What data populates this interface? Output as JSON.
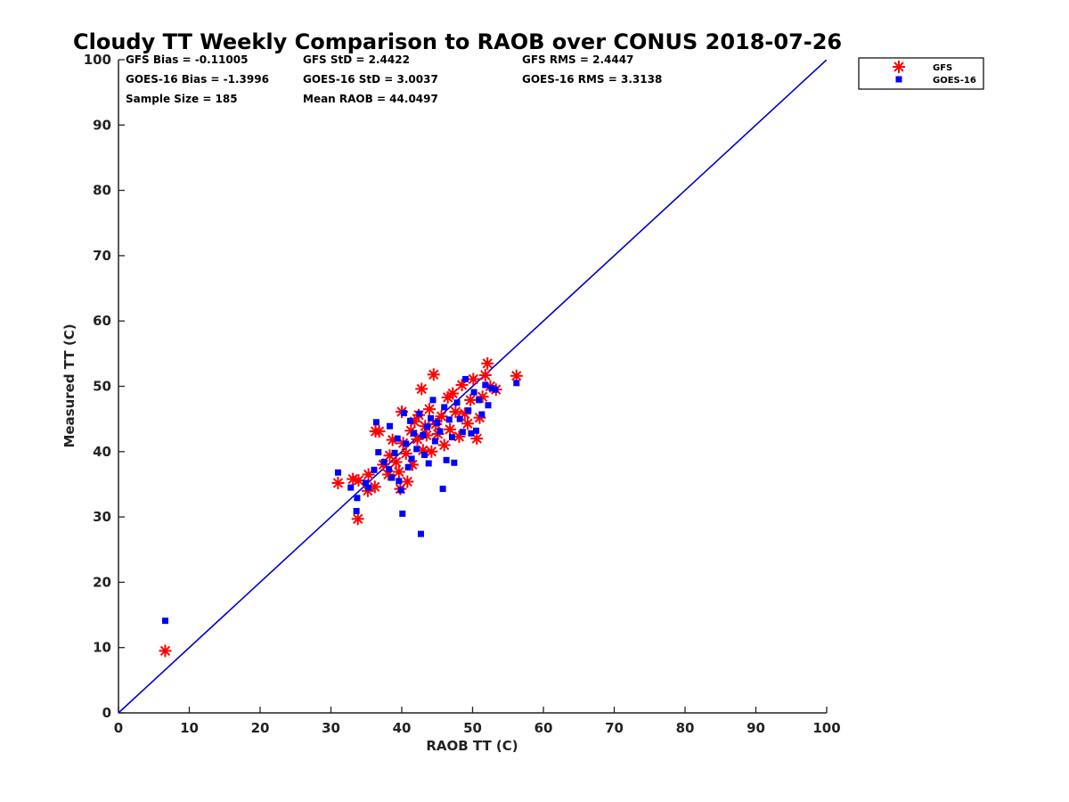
{
  "chart_data": {
    "type": "scatter",
    "title": "Cloudy TT Weekly Comparison to RAOB over CONUS 2018-07-26",
    "xlabel": "RAOB TT (C)",
    "ylabel": "Measured TT (C)",
    "xlim": [
      0,
      100
    ],
    "ylim": [
      0,
      100
    ],
    "xticks": [
      "0",
      "10",
      "20",
      "30",
      "40",
      "50",
      "60",
      "70",
      "80",
      "90",
      "100"
    ],
    "yticks": [
      "0",
      "10",
      "20",
      "30",
      "40",
      "50",
      "60",
      "70",
      "80",
      "90",
      "100"
    ],
    "grid": false,
    "legend_position": "top-right",
    "colors": {
      "gfs": "#ff0000",
      "goes": "#0000ff",
      "line": "#0000cc"
    },
    "reference_line": {
      "name": "one-to-one",
      "points": [
        [
          0,
          0
        ],
        [
          100,
          100
        ]
      ]
    },
    "stats": [
      [
        "GFS Bias = -0.11005",
        "GFS StD = 2.4422",
        "GFS RMS = 2.4447"
      ],
      [
        "GOES-16 Bias = -1.3996",
        "GOES-16 StD = 3.0037",
        "GOES-16 RMS = 3.3138"
      ],
      [
        "Sample Size = 185",
        "Mean RAOB = 44.0497"
      ]
    ],
    "series": [
      {
        "name": "GFS",
        "marker": "asterisk",
        "points": [
          [
            6.6,
            9.5
          ],
          [
            31,
            35.2
          ],
          [
            33.1,
            35.8
          ],
          [
            33.8,
            29.7
          ],
          [
            33.9,
            35.6
          ],
          [
            35.2,
            34
          ],
          [
            35.3,
            36.5
          ],
          [
            36.2,
            34.6
          ],
          [
            36.3,
            43.1
          ],
          [
            36.8,
            43.1
          ],
          [
            37.4,
            38
          ],
          [
            38.1,
            36.5
          ],
          [
            38.3,
            39.4
          ],
          [
            38.7,
            41.8
          ],
          [
            39.2,
            38.4
          ],
          [
            39.6,
            36.9
          ],
          [
            39.8,
            34.3
          ],
          [
            40,
            46.1
          ],
          [
            40.2,
            41.3
          ],
          [
            40.6,
            39.7
          ],
          [
            40.8,
            35.4
          ],
          [
            41.3,
            43.2
          ],
          [
            41.5,
            38
          ],
          [
            41.8,
            44.6
          ],
          [
            42.2,
            41.9
          ],
          [
            42.4,
            45.6
          ],
          [
            42.8,
            49.6
          ],
          [
            43,
            40.2
          ],
          [
            43.3,
            43.9
          ],
          [
            43.5,
            42.5
          ],
          [
            43.9,
            46.5
          ],
          [
            44.2,
            40
          ],
          [
            44.5,
            51.8
          ],
          [
            44.8,
            44.2
          ],
          [
            45.1,
            42.7
          ],
          [
            45.6,
            45.4
          ],
          [
            46,
            41
          ],
          [
            46.5,
            48.3
          ],
          [
            46.8,
            43.4
          ],
          [
            47.2,
            48.9
          ],
          [
            47.6,
            46.1
          ],
          [
            48.1,
            42.3
          ],
          [
            48.5,
            50.2
          ],
          [
            48.9,
            45.8
          ],
          [
            49.3,
            44.3
          ],
          [
            49.7,
            47.9
          ],
          [
            50.1,
            51.1
          ],
          [
            50.6,
            42
          ],
          [
            51,
            45.2
          ],
          [
            51.4,
            48.4
          ],
          [
            51.8,
            51.7
          ],
          [
            52.1,
            53.5
          ],
          [
            52.5,
            50
          ],
          [
            53.3,
            49.5
          ],
          [
            56.2,
            51.6
          ]
        ]
      },
      {
        "name": "GOES-16",
        "marker": "square",
        "points": [
          [
            6.6,
            14.1
          ],
          [
            31,
            36.8
          ],
          [
            32.8,
            34.5
          ],
          [
            33.7,
            32.9
          ],
          [
            33.6,
            30.9
          ],
          [
            34.9,
            35.2
          ],
          [
            35.3,
            34.5
          ],
          [
            36.1,
            37.2
          ],
          [
            36.4,
            44.5
          ],
          [
            36.7,
            39.9
          ],
          [
            37.5,
            38.4
          ],
          [
            38.2,
            37.3
          ],
          [
            38.3,
            43.9
          ],
          [
            38.6,
            36
          ],
          [
            39,
            39.8
          ],
          [
            39.4,
            42
          ],
          [
            39.6,
            35.5
          ],
          [
            39.9,
            34.1
          ],
          [
            40.1,
            30.5
          ],
          [
            40.3,
            45.9
          ],
          [
            40.6,
            41.2
          ],
          [
            40.9,
            37.6
          ],
          [
            41.2,
            44.7
          ],
          [
            41.4,
            38.9
          ],
          [
            41.7,
            42.8
          ],
          [
            42.1,
            40.4
          ],
          [
            42.5,
            45.8
          ],
          [
            42.7,
            27.4
          ],
          [
            43,
            42.5
          ],
          [
            43.2,
            39.5
          ],
          [
            43.6,
            43.8
          ],
          [
            43.8,
            38.2
          ],
          [
            44.1,
            45.1
          ],
          [
            44.4,
            47.9
          ],
          [
            44.7,
            41.6
          ],
          [
            45,
            44.4
          ],
          [
            45.4,
            43.1
          ],
          [
            45.8,
            34.3
          ],
          [
            46,
            46.8
          ],
          [
            46.3,
            38.7
          ],
          [
            46.7,
            44.9
          ],
          [
            47.1,
            42.2
          ],
          [
            47.4,
            38.3
          ],
          [
            47.8,
            47.5
          ],
          [
            48.2,
            45
          ],
          [
            48.6,
            43
          ],
          [
            49,
            51.1
          ],
          [
            49.4,
            46.3
          ],
          [
            49.8,
            42.8
          ],
          [
            50.2,
            49.1
          ],
          [
            50.5,
            43.2
          ],
          [
            50.9,
            47.9
          ],
          [
            51.3,
            45.7
          ],
          [
            51.8,
            50.2
          ],
          [
            52.2,
            47.1
          ],
          [
            52.7,
            49.7
          ],
          [
            53.2,
            49.5
          ],
          [
            56.2,
            50.5
          ]
        ]
      }
    ]
  }
}
